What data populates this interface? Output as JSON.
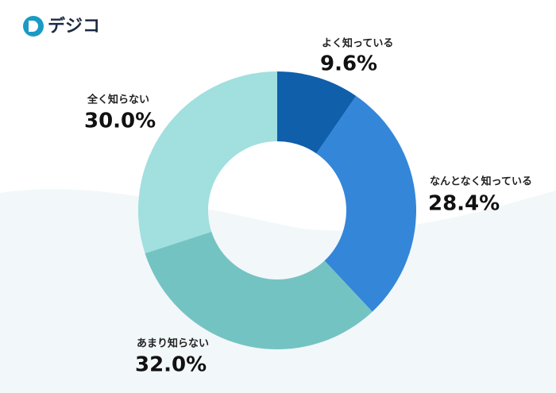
{
  "logo": "デジコ",
  "chart_data": {
    "type": "donut",
    "categories": [
      "よく知っている",
      "なんとなく知っている",
      "あまり知らない",
      "全く知らない"
    ],
    "values": [
      9.6,
      28.4,
      32.0,
      30.0
    ],
    "value_labels": [
      "9.6%",
      "28.4%",
      "32.0%",
      "30.0%"
    ],
    "colors": [
      "#0f5fab",
      "#3486d8",
      "#74c3c3",
      "#a2dfdf"
    ]
  }
}
